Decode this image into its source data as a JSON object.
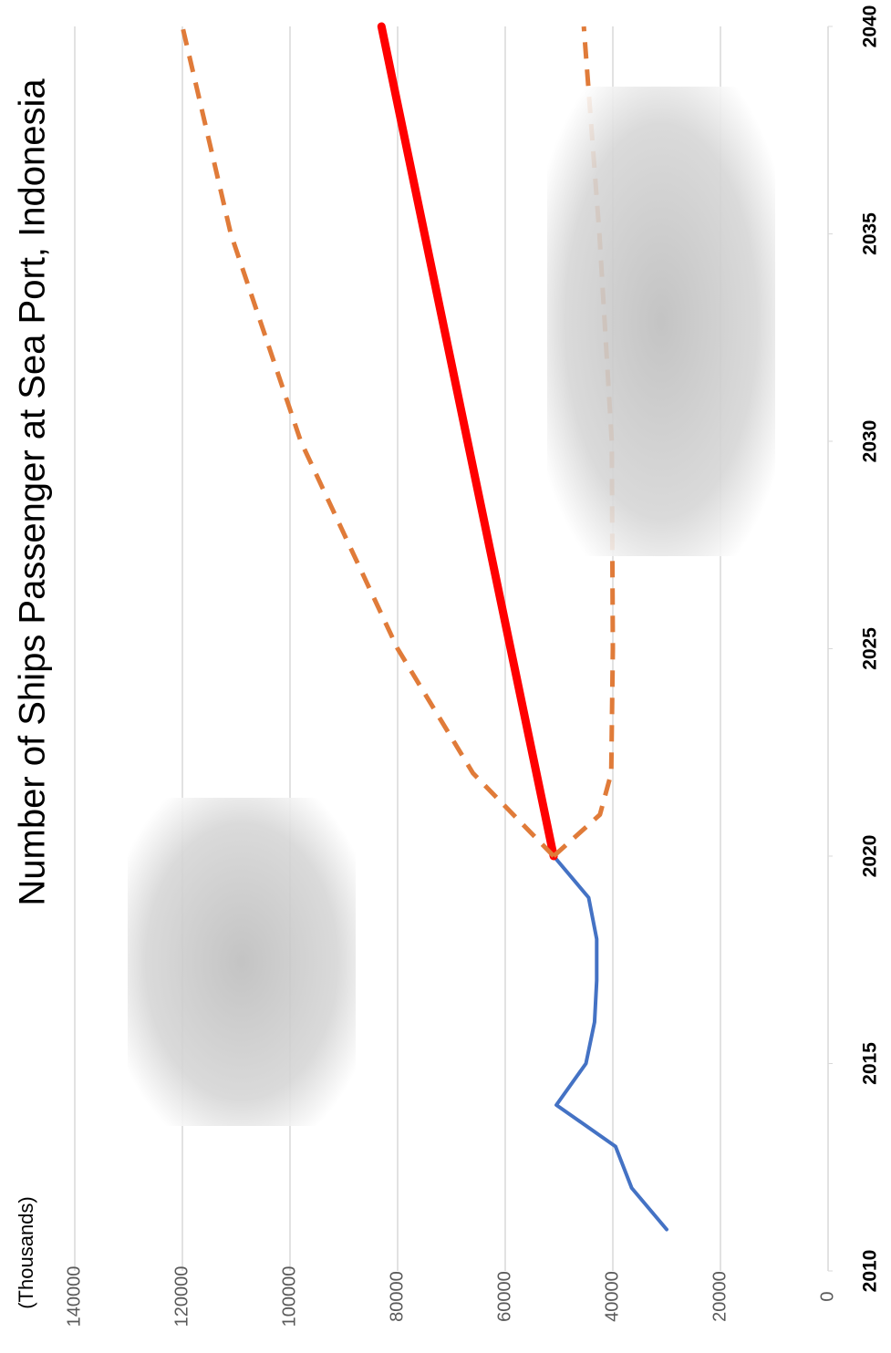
{
  "chart_data": {
    "type": "line",
    "title": "Number of Ships Passenger at Sea Port, Indonesia",
    "y_label": "(Thousands)",
    "xlim": [
      2010,
      2040
    ],
    "xticks": [
      2010,
      2015,
      2020,
      2025,
      2030,
      2035,
      2040
    ],
    "ylim": [
      0,
      140000
    ],
    "yticks": [
      0,
      20000,
      40000,
      60000,
      80000,
      100000,
      120000,
      140000
    ],
    "grid": true,
    "series": [
      {
        "color": "#4472c4",
        "dash": false,
        "width": 4,
        "x": [
          2011,
          2012,
          2013,
          2014,
          2015,
          2016,
          2017,
          2018,
          2019,
          2020
        ],
        "values": [
          30000,
          36500,
          39500,
          50500,
          45000,
          43400,
          43000,
          43000,
          44500,
          51000
        ]
      },
      {
        "color": "#ff0000",
        "dash": false,
        "width": 9,
        "x": [
          2020,
          2040
        ],
        "values": [
          51000,
          83000
        ]
      },
      {
        "color": "#e07b39",
        "dash": true,
        "width": 5,
        "x": [
          2020,
          2022,
          2025,
          2030,
          2035,
          2040
        ],
        "values": [
          51000,
          66000,
          80000,
          98000,
          111000,
          120000
        ]
      },
      {
        "color": "#e07b39",
        "dash": true,
        "width": 5,
        "x": [
          2020,
          2021,
          2022,
          2025,
          2030,
          2035,
          2040
        ],
        "values": [
          51000,
          42400,
          40300,
          40000,
          40200,
          42500,
          45400
        ]
      }
    ]
  }
}
